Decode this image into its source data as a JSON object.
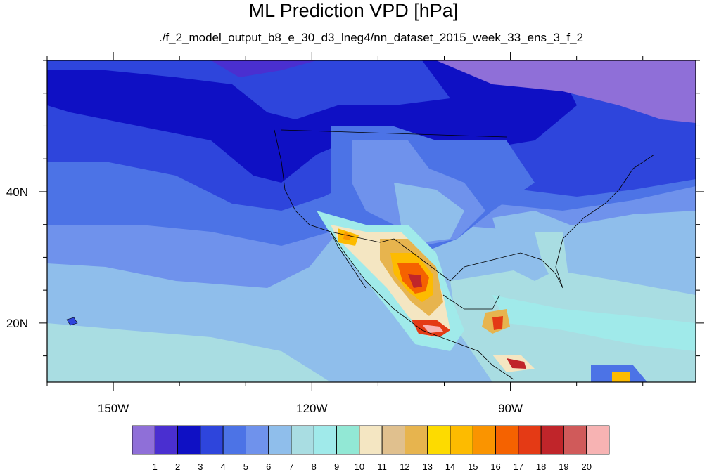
{
  "title": "ML Prediction VPD [hPa]",
  "subtitle": "./f_2_model_output_b8_e_30_d3_lneg4/nn_dataset_2015_week_33_ens_3_f_2",
  "map": {
    "lon_range": [
      -160,
      -62
    ],
    "lat_range": [
      11,
      60
    ],
    "x_ticks": [
      {
        "value": -150,
        "label": "150W"
      },
      {
        "value": -120,
        "label": "120W"
      },
      {
        "value": -90,
        "label": "90W"
      }
    ],
    "y_ticks": [
      {
        "value": 40,
        "label": "40N"
      },
      {
        "value": 20,
        "label": "20N"
      }
    ]
  },
  "colorbar": {
    "colors": [
      "#8f6fd8",
      "#4a2fd0",
      "#0f10c4",
      "#2e45dc",
      "#4c73e6",
      "#6f92ec",
      "#8fbeeb",
      "#a9dde2",
      "#a0eaea",
      "#92e8d5",
      "#f4e6c2",
      "#e0c08e",
      "#e7b44e",
      "#fddb00",
      "#fdbb00",
      "#fa9400",
      "#f56200",
      "#e43a15",
      "#c0252a",
      "#d05a5a",
      "#f7b3b3"
    ],
    "labels": [
      "1",
      "2",
      "3",
      "4",
      "5",
      "6",
      "7",
      "8",
      "9",
      "10",
      "11",
      "12",
      "13",
      "14",
      "15",
      "16",
      "17",
      "18",
      "19",
      "20"
    ]
  }
}
